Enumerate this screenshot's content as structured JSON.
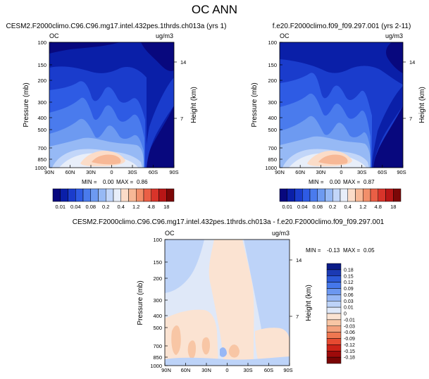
{
  "figure": {
    "title": "OC ANN"
  },
  "colors": {
    "abs": [
      "#08087e",
      "#0a1fa8",
      "#1a3ccc",
      "#2e5be4",
      "#4a7bed",
      "#6d9af1",
      "#96b9f5",
      "#c2d6f9",
      "#e8eef9",
      "#fbdcc8",
      "#f7b896",
      "#f28f6a",
      "#ea5f45",
      "#d8342a",
      "#b81616",
      "#7c0707"
    ],
    "diff": [
      "#0a1b87",
      "#1b3ab4",
      "#2d5ad8",
      "#4577ea",
      "#6c97f0",
      "#97b7f5",
      "#bdd3f8",
      "#dfe8f8",
      "#fbe3d2",
      "#f8c6a5",
      "#f4a07c",
      "#ef7751",
      "#e64a30",
      "#cc2318",
      "#9e0a0a",
      "#7a0505"
    ]
  },
  "chart_data": [
    {
      "id": "panel1",
      "type": "contour",
      "title": "CESM2.F2000climo.C96.C96.mg17.intel.432pes.1thrds.ch013a (yrs 1)",
      "var_label": "OC",
      "units_label": "ug/m3",
      "ylabel": "Pressure (mb)",
      "y2label": "Height (km)",
      "xticks": [
        "90N",
        "60N",
        "30N",
        "0",
        "30S",
        "60S",
        "90S"
      ],
      "yticks": [
        "100",
        "150",
        "200",
        "300",
        "400",
        "500",
        "700",
        "850",
        "1000"
      ],
      "y2ticks": [
        "14",
        "7"
      ],
      "stats": {
        "min_label": "MIN =",
        "min": "0.00",
        "max_label": "MAX =",
        "max": "0.86"
      },
      "colorbar_labels": [
        "0.01",
        "0.04",
        "0.08",
        "0.2",
        "0.4",
        "1.2",
        "4.8",
        "18"
      ],
      "palette": "abs"
    },
    {
      "id": "panel2",
      "type": "contour",
      "title": "f.e20.F2000climo.f09_f09.297.001 (yrs 2-11)",
      "var_label": "OC",
      "units_label": "ug/m3",
      "ylabel": "Pressure (mb)",
      "y2label": "Height (km)",
      "xticks": [
        "90N",
        "60N",
        "30N",
        "0",
        "30S",
        "60S",
        "90S"
      ],
      "yticks": [
        "100",
        "150",
        "200",
        "300",
        "400",
        "500",
        "700",
        "850",
        "1000"
      ],
      "y2ticks": [
        "14",
        "7"
      ],
      "stats": {
        "min_label": "MIN =",
        "min": "0.00",
        "max_label": "MAX =",
        "max": "0.87"
      },
      "colorbar_labels": [
        "0.01",
        "0.04",
        "0.08",
        "0.2",
        "0.4",
        "1.2",
        "4.8",
        "18"
      ],
      "palette": "abs"
    },
    {
      "id": "panel3",
      "type": "contour",
      "title": "CESM2.F2000climo.C96.C96.mg17.intel.432pes.1thrds.ch013a - f.e20.F2000climo.f09_f09.297.001",
      "var_label": "OC",
      "units_label": "ug/m3",
      "ylabel": "Pressure (mb)",
      "y2label": "Height (km)",
      "xticks": [
        "90N",
        "60N",
        "30N",
        "0",
        "30S",
        "60S",
        "90S"
      ],
      "yticks": [
        "100",
        "150",
        "200",
        "300",
        "400",
        "500",
        "700",
        "850",
        "1000"
      ],
      "y2ticks": [
        "14",
        "7"
      ],
      "stats": {
        "min_label": "MIN =",
        "min": "-0.13",
        "max_label": "MAX =",
        "max": "0.05"
      },
      "colorbar_labels": [
        "0.18",
        "0.15",
        "0.12",
        "0.09",
        "0.06",
        "0.03",
        "0.01",
        "0",
        "-0.01",
        "-0.03",
        "-0.06",
        "-0.09",
        "-0.12",
        "-0.15",
        "-0.18"
      ],
      "palette": "diff"
    }
  ]
}
